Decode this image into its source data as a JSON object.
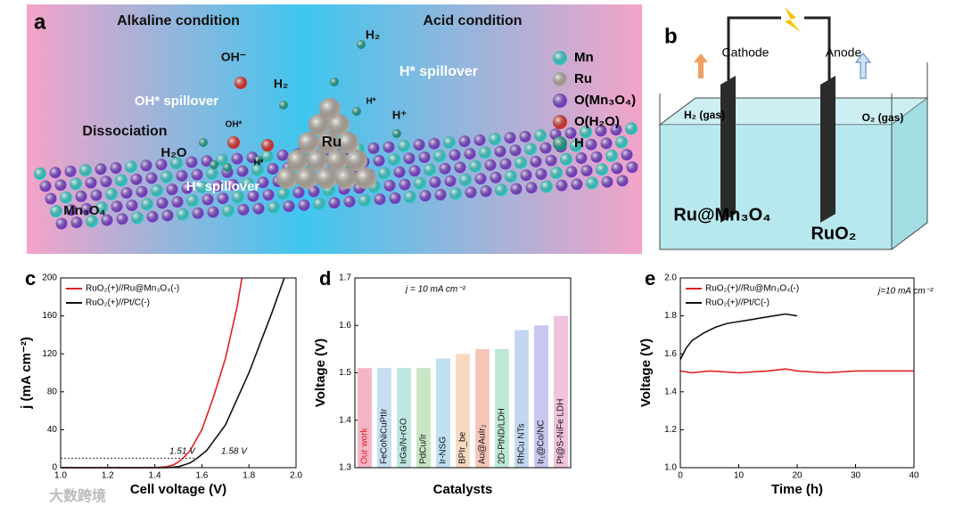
{
  "panel_a": {
    "label": "a",
    "texts": [
      "Alkaline condition",
      "Acid condition",
      "OH⁻",
      "OH* spillover",
      "H₂",
      "Dissociation",
      "OH*",
      "H₂O",
      "H*",
      "H* spillover",
      "Ru",
      "H*",
      "H⁺",
      "H₂",
      "H* spillover",
      "Mn₃O₄"
    ],
    "legend": [
      {
        "label": "Mn",
        "color": "#2fd3d0"
      },
      {
        "label": "Ru",
        "color": "#b8aea4"
      },
      {
        "label": "O(Mn₃O₄)",
        "color": "#7b3fd0"
      },
      {
        "label": "O(H₂O)",
        "color": "#e0302a"
      },
      {
        "label": "H",
        "color": "#1a9e8a"
      }
    ]
  },
  "panel_b": {
    "label": "b",
    "texts": [
      "Cathode",
      "Anode",
      "H₂ (gas)",
      "O₂ (gas)",
      "Ru@Mn₃O₄",
      "RuO₂"
    ]
  },
  "watermark": "大数跨境",
  "chart_data": [
    {
      "type": "line",
      "panel": "c",
      "xlabel": "Cell voltage (V)",
      "ylabel": "j (mA cm⁻²)",
      "xlim": [
        1.0,
        2.0
      ],
      "xticks": [
        {
          "value": 1.0,
          "label": "1.0"
        },
        1.2,
        1.4,
        1.6,
        1.8,
        {
          "value": 2.0,
          "label": "2.0"
        }
      ],
      "ylim": [
        0,
        200
      ],
      "yticks": [
        0,
        40,
        80,
        120,
        160,
        200
      ],
      "annotations": [
        "1.51 V",
        "1.58 V"
      ],
      "series": [
        {
          "name": "RuO₂(+)//Ru@Mn₃O₄(-)",
          "color": "#e02020",
          "x": [
            1.0,
            1.4,
            1.45,
            1.48,
            1.5,
            1.52,
            1.55,
            1.6,
            1.65,
            1.7,
            1.75,
            1.77
          ],
          "values": [
            0,
            0,
            1,
            3,
            6,
            10,
            18,
            40,
            75,
            115,
            170,
            200
          ]
        },
        {
          "name": "RuO₂(+)//Pt/C(-)",
          "color": "#111111",
          "x": [
            1.0,
            1.45,
            1.5,
            1.55,
            1.58,
            1.62,
            1.7,
            1.8,
            1.9,
            1.95
          ],
          "values": [
            0,
            0,
            1,
            5,
            10,
            18,
            45,
            100,
            165,
            200
          ]
        }
      ]
    },
    {
      "type": "bar",
      "panel": "d",
      "xlabel": "Catalysts",
      "ylabel": "Voltage (V)",
      "ylim": [
        1.3,
        1.7
      ],
      "yticks": [
        1.3,
        1.4,
        1.5,
        1.6,
        1.7
      ],
      "annotations": [
        "j = 10 mA cm⁻²"
      ],
      "categories": [
        "Our work",
        "FeCoNiCuPtIr",
        "IrGa/N-rGO",
        "PdCu/Ir",
        "Ir-NSG",
        "BPIr_be",
        "Au@AuIr₂",
        "2D-PtND/LDH",
        "RhCu NTs",
        "Ir₁@Co/NC",
        "Pt@S-NiFe LDH"
      ],
      "values": [
        1.51,
        1.51,
        1.51,
        1.51,
        1.53,
        1.54,
        1.55,
        1.55,
        1.59,
        1.6,
        1.62
      ],
      "colors": [
        "#f4b6c6",
        "#c6dff0",
        "#bde7e3",
        "#c9e6c4",
        "#bfe0f0",
        "#f7d9c2",
        "#f5c6b8",
        "#bfe8d6",
        "#c3d7f2",
        "#c9c6ef",
        "#f0c2dd"
      ]
    },
    {
      "type": "line",
      "panel": "e",
      "xlabel": "Time (h)",
      "ylabel": "Voltage (V)",
      "xlim": [
        0,
        40
      ],
      "xticks": [
        0,
        10,
        20,
        30,
        40
      ],
      "ylim": [
        1.0,
        2.0
      ],
      "yticks": [
        {
          "value": 1.0,
          "label": "1.0"
        },
        1.2,
        1.4,
        1.6,
        1.8,
        {
          "value": 2.0,
          "label": "2.0"
        }
      ],
      "annotations": [
        "j=10 mA cm⁻²"
      ],
      "series": [
        {
          "name": "RuO₂(+)//Ru@Mn₃O₄(-)",
          "color": "#e02020",
          "x": [
            0,
            2,
            5,
            10,
            15,
            18,
            20,
            25,
            30,
            35,
            40
          ],
          "values": [
            1.51,
            1.5,
            1.51,
            1.5,
            1.51,
            1.52,
            1.51,
            1.5,
            1.51,
            1.51,
            1.51
          ]
        },
        {
          "name": "RuO₂(+)//Pt/C(-)",
          "color": "#111111",
          "x": [
            0,
            1,
            2,
            4,
            6,
            8,
            10,
            12,
            14,
            16,
            18,
            20
          ],
          "values": [
            1.57,
            1.63,
            1.67,
            1.71,
            1.74,
            1.76,
            1.77,
            1.78,
            1.79,
            1.8,
            1.81,
            1.8
          ]
        }
      ]
    }
  ]
}
